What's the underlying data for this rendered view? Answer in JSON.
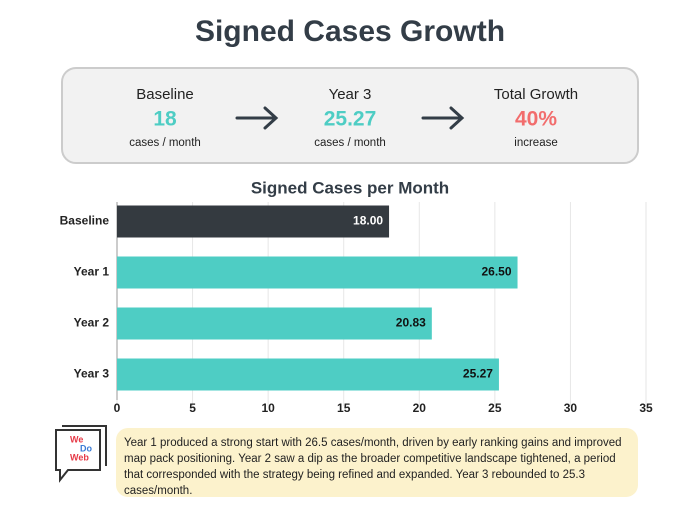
{
  "header": {
    "title": "Signed Cases Growth"
  },
  "summary": [
    {
      "label": "Baseline",
      "value": "18",
      "unit": "cases / month"
    },
    {
      "label": "Year 3",
      "value": "25.27",
      "unit": "cases / month"
    },
    {
      "label": "Total Growth",
      "value": "40%",
      "unit": "increase"
    }
  ],
  "chart_data": {
    "type": "bar",
    "orientation": "horizontal",
    "title": "Signed Cases per Month",
    "categories": [
      "Baseline",
      "Year 1",
      "Year 2",
      "Year 3"
    ],
    "values": [
      18,
      26.5,
      20.83,
      25.27
    ],
    "value_labels": [
      "18.00",
      "26.50",
      "20.83",
      "25.27"
    ],
    "colors": [
      "#343a40",
      "#4ecdc4",
      "#4ecdc4",
      "#4ecdc4"
    ],
    "xlim": [
      0,
      35
    ],
    "xticks": [
      0,
      5,
      10,
      15,
      20,
      25,
      30,
      35
    ],
    "grid": true
  },
  "logo": {
    "lines": [
      "We",
      "Do",
      "Web"
    ]
  },
  "note": {
    "text": "Year 1 produced a strong start with 26.5 cases/month, driven by early ranking gains and improved map pack positioning. Year 2 saw a dip as the broader competitive landscape tightened, a period that corresponded with the strategy being refined and expanded. Year 3 rebounded to 25.3 cases/month."
  }
}
